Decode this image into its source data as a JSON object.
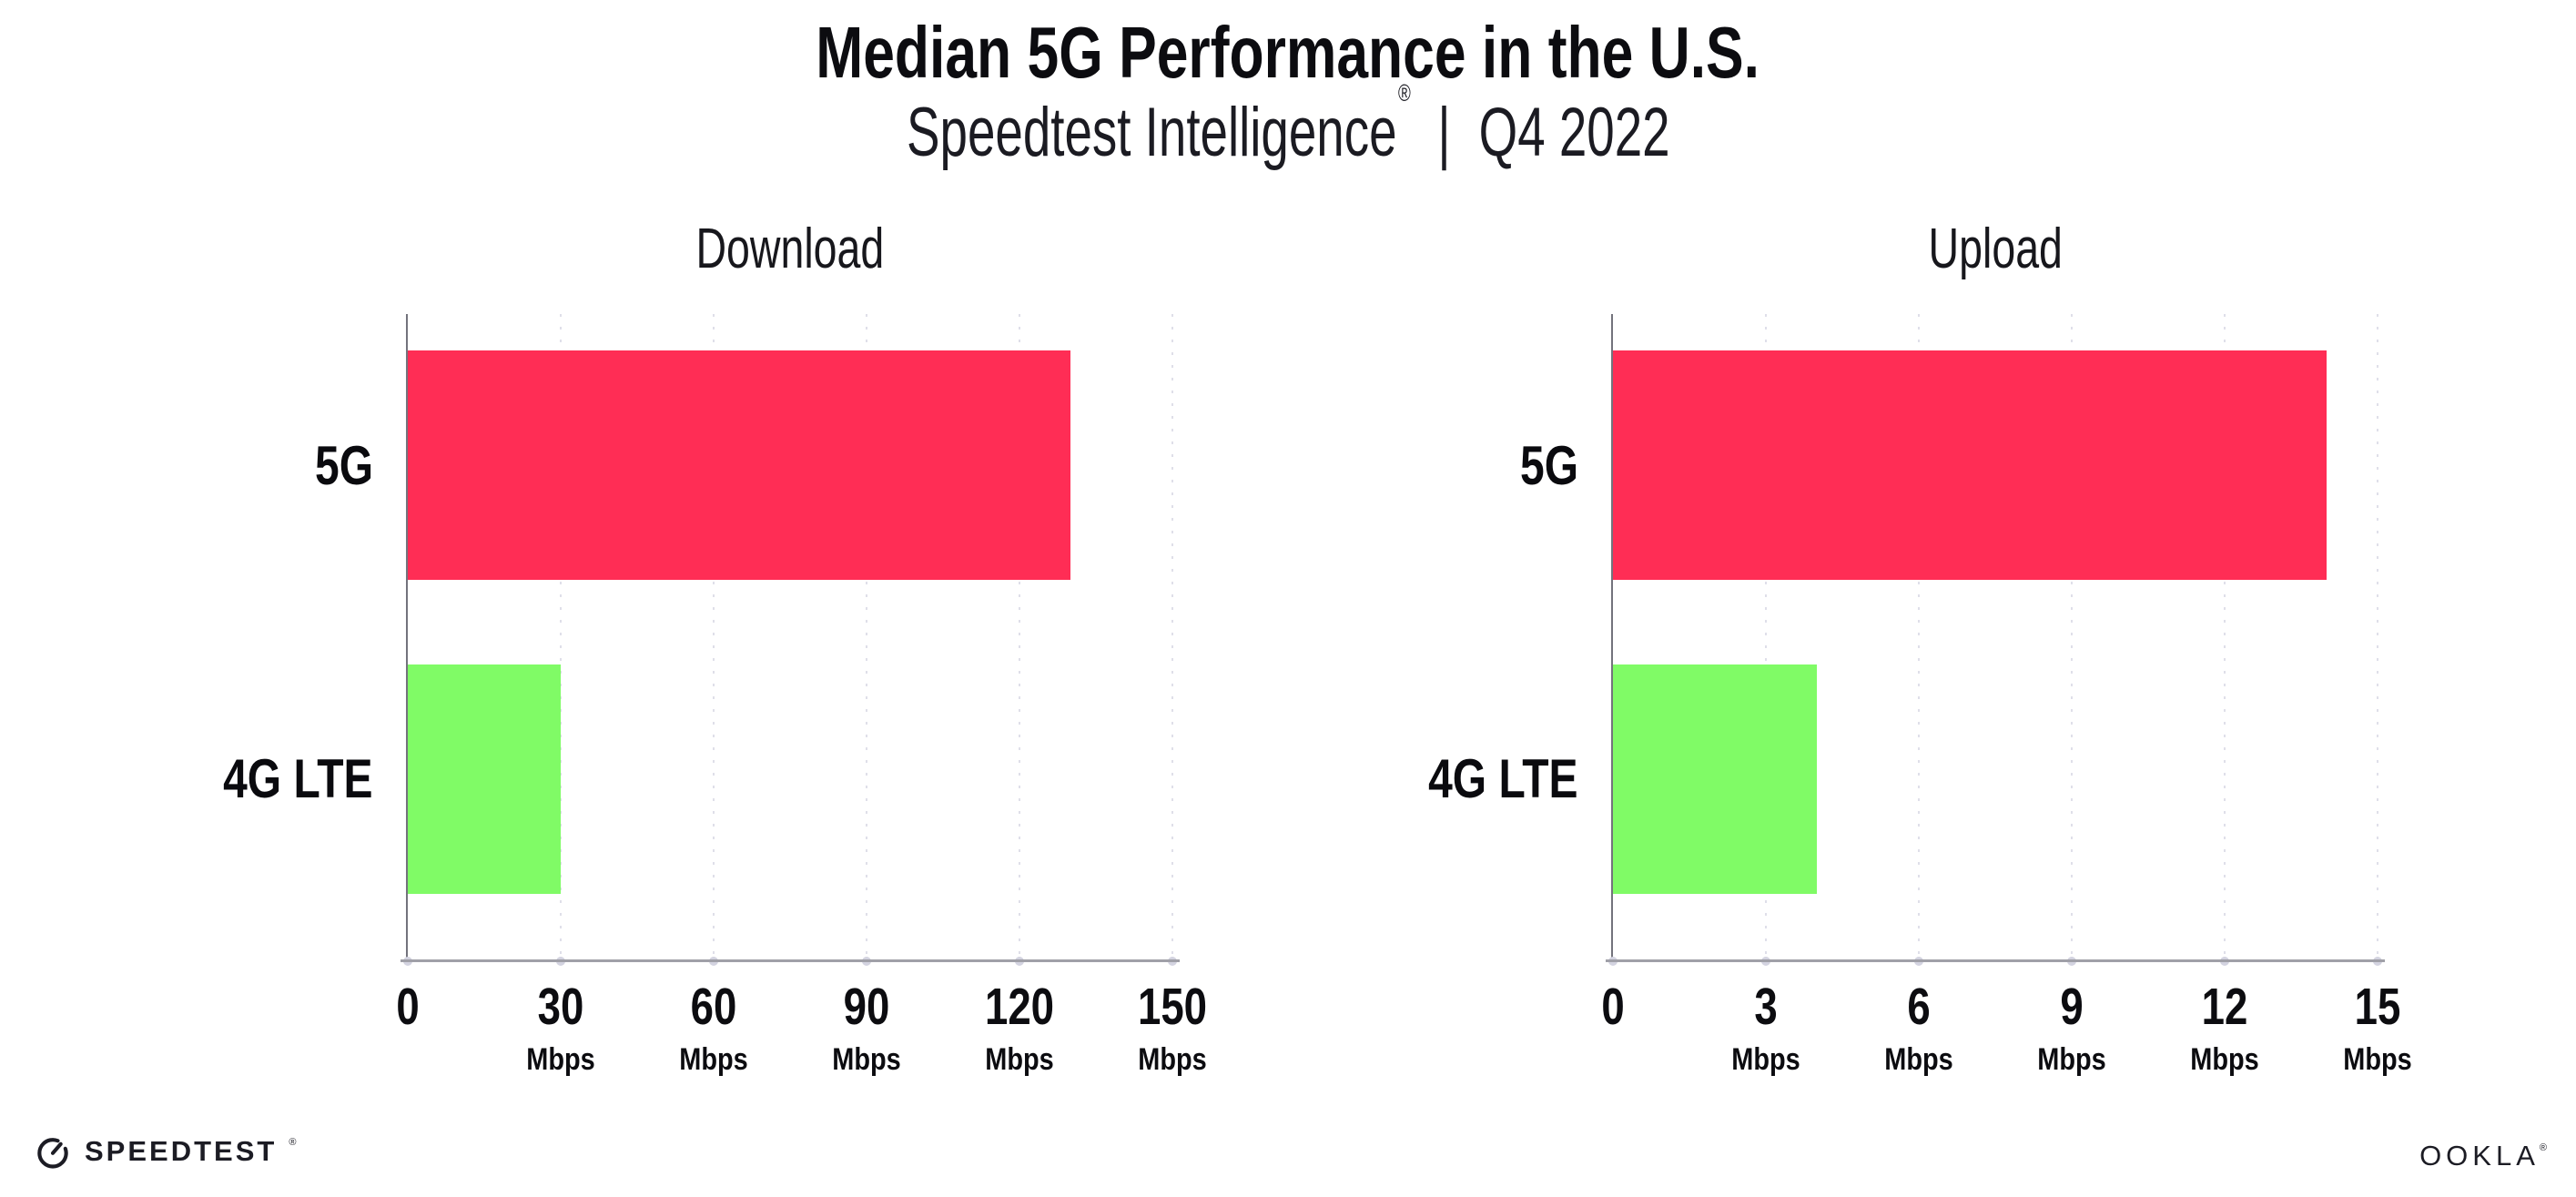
{
  "header": {
    "title": "Median 5G Performance in the U.S.",
    "subtitle_brand": "Speedtest Intelligence",
    "subtitle_reg": "®",
    "subtitle_sep": "|",
    "subtitle_period": "Q4 2022"
  },
  "chart_data": [
    {
      "type": "bar",
      "orientation": "horizontal",
      "title": "Download",
      "categories": [
        "5G",
        "4G LTE"
      ],
      "values": [
        130,
        30
      ],
      "unit": "Mbps",
      "xlabel": "",
      "ylabel": "",
      "xlim": [
        0,
        150
      ],
      "xticks": [
        0,
        30,
        60,
        90,
        120,
        150
      ],
      "ticks": [
        {
          "label": "0",
          "unit": ""
        },
        {
          "label": "30",
          "unit": "Mbps"
        },
        {
          "label": "60",
          "unit": "Mbps"
        },
        {
          "label": "90",
          "unit": "Mbps"
        },
        {
          "label": "120",
          "unit": "Mbps"
        },
        {
          "label": "150",
          "unit": "Mbps"
        }
      ],
      "bar_colors": [
        "#FF2D55",
        "#80FB66"
      ],
      "grid": "dotted-vertical",
      "legend": "none"
    },
    {
      "type": "bar",
      "orientation": "horizontal",
      "title": "Upload",
      "categories": [
        "5G",
        "4G LTE"
      ],
      "values": [
        14,
        4
      ],
      "unit": "Mbps",
      "xlabel": "",
      "ylabel": "",
      "xlim": [
        0,
        15
      ],
      "xticks": [
        0,
        3,
        6,
        9,
        12,
        15
      ],
      "ticks": [
        {
          "label": "0",
          "unit": ""
        },
        {
          "label": "3",
          "unit": "Mbps"
        },
        {
          "label": "6",
          "unit": "Mbps"
        },
        {
          "label": "9",
          "unit": "Mbps"
        },
        {
          "label": "12",
          "unit": "Mbps"
        },
        {
          "label": "15",
          "unit": "Mbps"
        }
      ],
      "bar_colors": [
        "#FF2D55",
        "#80FB66"
      ],
      "grid": "dotted-vertical",
      "legend": "none"
    }
  ],
  "colors": {
    "bar_5g": "#FF2D55",
    "bar_4g_lte": "#80FB66",
    "y_axis": "#73737c",
    "x_axis": "#a0a0a8",
    "grid_dot": "#dfdfe9",
    "tick_dot": "#d3d3e0",
    "text": "#0c0c10"
  },
  "footer": {
    "speedtest_label": "SPEEDTEST",
    "speedtest_reg": "®",
    "speedtest_icon": "speedometer-gauge-icon",
    "ookla_label": "OOKLA",
    "ookla_reg": "®"
  }
}
